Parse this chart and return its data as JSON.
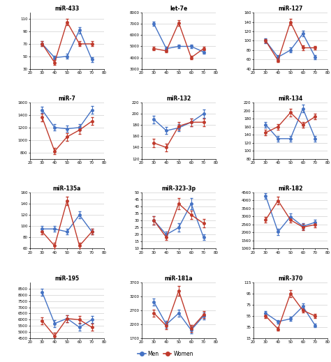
{
  "panels": [
    {
      "title": "miR-433",
      "x": [
        30,
        40,
        50,
        60,
        70
      ],
      "men_y": [
        70,
        48,
        50,
        92,
        45
      ],
      "women_y": [
        70,
        40,
        105,
        70,
        70
      ],
      "men_err": [
        4,
        3,
        4,
        5,
        4
      ],
      "women_err": [
        4,
        4,
        5,
        4,
        4
      ],
      "ylim": [
        30,
        120
      ],
      "yticks": [
        30,
        50,
        70,
        90,
        110
      ]
    },
    {
      "title": "let-7e",
      "x": [
        30,
        40,
        50,
        60,
        70
      ],
      "men_y": [
        7000,
        4800,
        5000,
        5000,
        4500
      ],
      "women_y": [
        4800,
        4600,
        7100,
        4000,
        4800
      ],
      "men_err": [
        200,
        150,
        150,
        150,
        150
      ],
      "women_err": [
        150,
        150,
        250,
        150,
        150
      ],
      "ylim": [
        3000,
        8000
      ],
      "yticks": [
        3000,
        4000,
        5000,
        6000,
        7000,
        8000
      ]
    },
    {
      "title": "miR-127",
      "x": [
        30,
        40,
        50,
        60,
        70
      ],
      "men_y": [
        100,
        65,
        80,
        115,
        65
      ],
      "women_y": [
        100,
        58,
        140,
        85,
        85
      ],
      "men_err": [
        5,
        4,
        5,
        6,
        4
      ],
      "women_err": [
        4,
        4,
        7,
        5,
        4
      ],
      "ylim": [
        40,
        160
      ],
      "yticks": [
        40,
        60,
        80,
        100,
        120,
        140,
        160
      ]
    },
    {
      "title": "miR-7",
      "x": [
        30,
        40,
        50,
        60,
        70
      ],
      "men_y": [
        1480,
        1200,
        1180,
        1200,
        1480
      ],
      "women_y": [
        1360,
        820,
        1050,
        1160,
        1300
      ],
      "men_err": [
        50,
        50,
        50,
        50,
        60
      ],
      "women_err": [
        60,
        50,
        60,
        60,
        60
      ],
      "ylim": [
        700,
        1600
      ],
      "yticks": [
        800,
        1000,
        1200,
        1400,
        1600
      ]
    },
    {
      "title": "miR-132",
      "x": [
        30,
        40,
        50,
        60,
        70
      ],
      "men_y": [
        190,
        170,
        175,
        185,
        200
      ],
      "women_y": [
        148,
        140,
        178,
        185,
        185
      ],
      "men_err": [
        7,
        6,
        6,
        7,
        7
      ],
      "women_err": [
        7,
        7,
        7,
        7,
        7
      ],
      "ylim": [
        120,
        220
      ],
      "yticks": [
        120,
        140,
        160,
        180,
        200,
        220
      ]
    },
    {
      "title": "miR-134",
      "x": [
        30,
        40,
        50,
        60,
        70
      ],
      "men_y": [
        165,
        130,
        130,
        205,
        130
      ],
      "women_y": [
        145,
        160,
        195,
        165,
        185
      ],
      "men_err": [
        7,
        7,
        7,
        9,
        7
      ],
      "women_err": [
        7,
        7,
        9,
        7,
        7
      ],
      "ylim": [
        80,
        220
      ],
      "yticks": [
        80,
        100,
        120,
        140,
        160,
        180,
        200,
        220
      ]
    },
    {
      "title": "miR-135a",
      "x": [
        30,
        40,
        50,
        60,
        70
      ],
      "men_y": [
        95,
        95,
        90,
        120,
        90
      ],
      "women_y": [
        90,
        65,
        145,
        65,
        90
      ],
      "men_err": [
        5,
        5,
        5,
        6,
        5
      ],
      "women_err": [
        5,
        5,
        7,
        5,
        5
      ],
      "ylim": [
        60,
        160
      ],
      "yticks": [
        60,
        80,
        100,
        120,
        140,
        160
      ]
    },
    {
      "title": "miR-323-3p",
      "x": [
        30,
        40,
        50,
        60,
        70
      ],
      "men_y": [
        30,
        20,
        25,
        42,
        18
      ],
      "women_y": [
        30,
        18,
        42,
        34,
        28
      ],
      "men_err": [
        3,
        2,
        3,
        4,
        2
      ],
      "women_err": [
        3,
        2,
        4,
        3,
        3
      ],
      "ylim": [
        10,
        50
      ],
      "yticks": [
        10,
        15,
        20,
        25,
        30,
        35,
        40,
        45,
        50
      ]
    },
    {
      "title": "miR-182",
      "x": [
        30,
        40,
        50,
        60,
        70
      ],
      "men_y": [
        4350,
        2100,
        3050,
        2450,
        2700
      ],
      "women_y": [
        2850,
        4050,
        2850,
        2400,
        2550
      ],
      "men_err": [
        180,
        180,
        180,
        180,
        180
      ],
      "women_err": [
        180,
        250,
        180,
        180,
        180
      ],
      "ylim": [
        1060,
        4560
      ],
      "yticks": [
        1060,
        1560,
        2060,
        2560,
        3060,
        3560,
        4060,
        4560
      ]
    },
    {
      "title": "miR-195",
      "x": [
        30,
        40,
        50,
        60,
        70
      ],
      "men_y": [
        8200,
        5700,
        6100,
        5400,
        6000
      ],
      "women_y": [
        5900,
        4700,
        6100,
        6000,
        5400
      ],
      "men_err": [
        280,
        280,
        280,
        280,
        280
      ],
      "women_err": [
        280,
        280,
        280,
        280,
        280
      ],
      "ylim": [
        4500,
        9000
      ],
      "yticks": [
        4500,
        5000,
        5500,
        6000,
        6500,
        7000,
        7500,
        8000,
        8500
      ]
    },
    {
      "title": "miR-181a",
      "x": [
        30,
        40,
        50,
        60,
        70
      ],
      "men_y": [
        3000,
        2200,
        2600,
        2000,
        2500
      ],
      "women_y": [
        2600,
        2150,
        3400,
        2050,
        2550
      ],
      "men_err": [
        130,
        130,
        130,
        130,
        130
      ],
      "women_err": [
        130,
        130,
        180,
        130,
        130
      ],
      "ylim": [
        1700,
        3700
      ],
      "yticks": [
        1700,
        2200,
        2700,
        3200,
        3700
      ]
    },
    {
      "title": "miR-370",
      "x": [
        30,
        40,
        50,
        60,
        70
      ],
      "men_y": [
        60,
        45,
        50,
        72,
        38
      ],
      "women_y": [
        55,
        32,
        95,
        65,
        55
      ],
      "men_err": [
        4,
        3,
        4,
        5,
        3
      ],
      "women_err": [
        4,
        3,
        6,
        4,
        4
      ],
      "ylim": [
        15,
        115
      ],
      "yticks": [
        15,
        35,
        55,
        75,
        95,
        115
      ]
    }
  ],
  "men_color": "#4472c4",
  "women_color": "#c0392b",
  "men_label": "Men",
  "women_label": "Women",
  "xlim": [
    20,
    80
  ],
  "xticks": [
    20,
    30,
    40,
    50,
    60,
    70,
    80
  ]
}
